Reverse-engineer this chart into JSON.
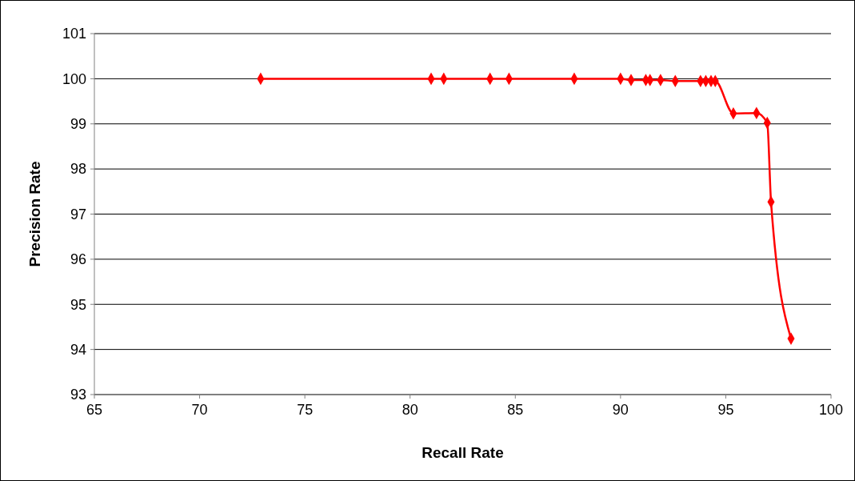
{
  "chart_data": {
    "type": "line",
    "xlabel": "Recall Rate",
    "ylabel": "Precision Rate",
    "xlim": [
      65,
      100
    ],
    "xticks": [
      65,
      70,
      75,
      80,
      85,
      90,
      95,
      100
    ],
    "ylim": [
      93,
      101
    ],
    "yticks": [
      93,
      94,
      95,
      96,
      97,
      98,
      99,
      100,
      101
    ],
    "grid": "y",
    "marker": "diamond",
    "line_style": "solid",
    "series": [
      {
        "color": "#ff0000",
        "x": [
          72.9,
          81.0,
          81.6,
          83.8,
          84.7,
          87.8,
          90.0,
          90.5,
          91.2,
          91.4,
          91.9,
          92.6,
          93.8,
          94.05,
          94.3,
          94.5,
          95.36,
          96.46,
          96.97,
          97.15,
          98.1
        ],
        "values": [
          100,
          100,
          100,
          100,
          100,
          100,
          100,
          99.97,
          99.97,
          99.97,
          99.97,
          99.95,
          99.95,
          99.95,
          99.95,
          99.95,
          99.23,
          99.24,
          99.02,
          97.27,
          94.24
        ]
      }
    ]
  }
}
